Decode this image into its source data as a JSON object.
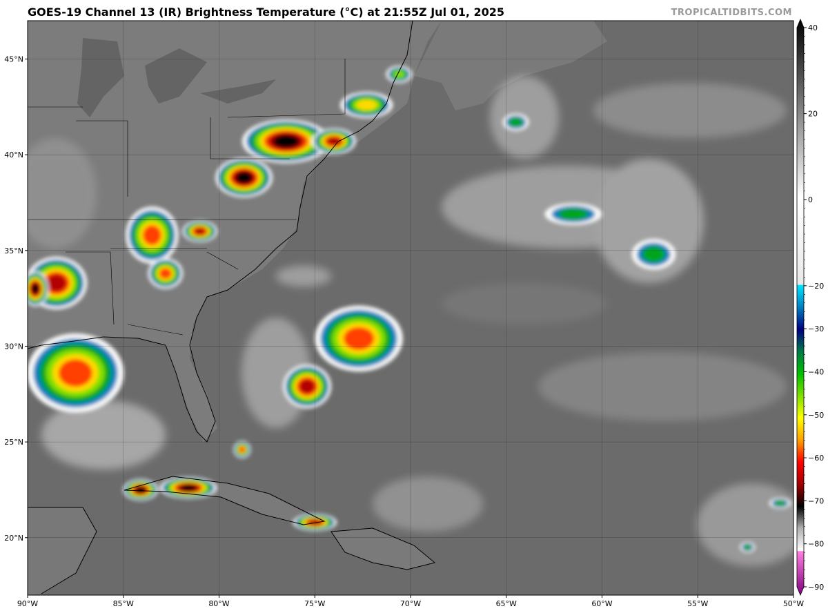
{
  "title": "GOES-19 Channel 13 (IR) Brightness Temperature (°C) at 21:55Z Jul 01, 2025",
  "credit": "TROPICALTIDBITS.COM",
  "map": {
    "lon_range": [
      -90,
      -50
    ],
    "lat_range": [
      17,
      47
    ],
    "lon_ticks": [
      {
        "value": -90,
        "label": "90°W"
      },
      {
        "value": -85,
        "label": "85°W"
      },
      {
        "value": -80,
        "label": "80°W"
      },
      {
        "value": -75,
        "label": "75°W"
      },
      {
        "value": -70,
        "label": "70°W"
      },
      {
        "value": -65,
        "label": "65°W"
      },
      {
        "value": -60,
        "label": "60°W"
      },
      {
        "value": -55,
        "label": "55°W"
      },
      {
        "value": -50,
        "label": "50°W"
      }
    ],
    "lat_ticks": [
      {
        "value": 20,
        "label": "20°N"
      },
      {
        "value": 25,
        "label": "25°N"
      },
      {
        "value": 30,
        "label": "30°N"
      },
      {
        "value": 35,
        "label": "35°N"
      },
      {
        "value": 40,
        "label": "40°N"
      },
      {
        "value": 45,
        "label": "45°N"
      }
    ],
    "gridlines": true,
    "background_color": "#6b6b6b"
  },
  "colorbar": {
    "range": [
      -90,
      40
    ],
    "ticks": [
      {
        "value": 40,
        "label": "40"
      },
      {
        "value": 20,
        "label": "20"
      },
      {
        "value": 0,
        "label": "0"
      },
      {
        "value": -20,
        "label": "−20"
      },
      {
        "value": -30,
        "label": "−30"
      },
      {
        "value": -40,
        "label": "−40"
      },
      {
        "value": -50,
        "label": "−50"
      },
      {
        "value": -60,
        "label": "−60"
      },
      {
        "value": -70,
        "label": "−70"
      },
      {
        "value": -80,
        "label": "−80"
      },
      {
        "value": -90,
        "label": "−90"
      }
    ],
    "stops": [
      {
        "value": 40,
        "color": "#000000"
      },
      {
        "value": 0,
        "color": "#ffffff"
      },
      {
        "value": -19.9,
        "color": "#e8e8e8"
      },
      {
        "value": -20,
        "color": "#00e5ff"
      },
      {
        "value": -25,
        "color": "#0080c0"
      },
      {
        "value": -30,
        "color": "#000080"
      },
      {
        "value": -35,
        "color": "#007a4a"
      },
      {
        "value": -40,
        "color": "#00c000"
      },
      {
        "value": -45,
        "color": "#80e000"
      },
      {
        "value": -50,
        "color": "#ffff00"
      },
      {
        "value": -55,
        "color": "#ffa000"
      },
      {
        "value": -60,
        "color": "#ff0000"
      },
      {
        "value": -65,
        "color": "#a00000"
      },
      {
        "value": -70,
        "color": "#000000"
      },
      {
        "value": -74.9,
        "color": "#b0b0b0"
      },
      {
        "value": -80,
        "color": "#ffffff"
      },
      {
        "value": -80.1,
        "color": "#ff80e0"
      },
      {
        "value": -90,
        "color": "#800080"
      }
    ]
  },
  "cloud_systems": [
    {
      "id": "bermuda-cluster",
      "lon": -72.7,
      "lat": 30.4,
      "rx": 2.0,
      "ry": 1.5,
      "min_temp": -62
    },
    {
      "id": "bahamas-north",
      "lon": -75.4,
      "lat": 27.9,
      "rx": 1.1,
      "ry": 1.0,
      "min_temp": -68
    },
    {
      "id": "cuba-west",
      "lon": -81.6,
      "lat": 22.6,
      "rx": 1.3,
      "ry": 0.5,
      "min_temp": -70
    },
    {
      "id": "cuba-far-west",
      "lon": -84.1,
      "lat": 22.5,
      "rx": 0.8,
      "ry": 0.5,
      "min_temp": -70
    },
    {
      "id": "hispaniola-north",
      "lon": -75.0,
      "lat": 20.8,
      "rx": 1.0,
      "ry": 0.4,
      "min_temp": -68
    },
    {
      "id": "gulf-central",
      "lon": -87.5,
      "lat": 28.6,
      "rx": 2.2,
      "ry": 1.8,
      "min_temp": -60
    },
    {
      "id": "alabama-mississippi",
      "lon": -88.5,
      "lat": 33.3,
      "rx": 1.4,
      "ry": 1.2,
      "min_temp": -68
    },
    {
      "id": "gulf-west",
      "lon": -89.6,
      "lat": 33.0,
      "rx": 0.6,
      "ry": 0.8,
      "min_temp": -70
    },
    {
      "id": "virginia",
      "lon": -78.7,
      "lat": 38.8,
      "rx": 1.3,
      "ry": 0.9,
      "min_temp": -70
    },
    {
      "id": "mid-atlantic",
      "lon": -76.5,
      "lat": 40.7,
      "rx": 2.0,
      "ry": 1.0,
      "min_temp": -70
    },
    {
      "id": "new-york",
      "lon": -74.0,
      "lat": 40.7,
      "rx": 1.0,
      "ry": 0.6,
      "min_temp": -68
    },
    {
      "id": "appalachian-chain",
      "lon": -83.5,
      "lat": 35.8,
      "rx": 1.2,
      "ry": 1.3,
      "min_temp": -62
    },
    {
      "id": "georgia",
      "lon": -82.8,
      "lat": 33.8,
      "rx": 0.8,
      "ry": 0.7,
      "min_temp": -62
    },
    {
      "id": "north-carolina",
      "lon": -81.0,
      "lat": 36.0,
      "rx": 0.8,
      "ry": 0.5,
      "min_temp": -66
    },
    {
      "id": "new-england",
      "lon": -72.3,
      "lat": 42.6,
      "rx": 1.2,
      "ry": 0.6,
      "min_temp": -55
    },
    {
      "id": "maine",
      "lon": -70.6,
      "lat": 44.2,
      "rx": 0.6,
      "ry": 0.4,
      "min_temp": -45
    },
    {
      "id": "atlantic-north-1",
      "lon": -64.5,
      "lat": 41.7,
      "rx": 0.6,
      "ry": 0.4,
      "min_temp": -42
    },
    {
      "id": "atlantic-north-2",
      "lon": -61.5,
      "lat": 36.9,
      "rx": 1.3,
      "ry": 0.5,
      "min_temp": -40
    },
    {
      "id": "atlantic-east",
      "lon": -57.3,
      "lat": 34.8,
      "rx": 1.0,
      "ry": 0.7,
      "min_temp": -42
    },
    {
      "id": "florida-keys",
      "lon": -78.8,
      "lat": 24.6,
      "rx": 0.4,
      "ry": 0.4,
      "min_temp": -60
    },
    {
      "id": "far-east-small",
      "lon": -52.4,
      "lat": 19.5,
      "rx": 0.35,
      "ry": 0.25,
      "min_temp": -40
    },
    {
      "id": "east-edge",
      "lon": -50.7,
      "lat": 21.8,
      "rx": 0.5,
      "ry": 0.25,
      "min_temp": -40
    }
  ]
}
